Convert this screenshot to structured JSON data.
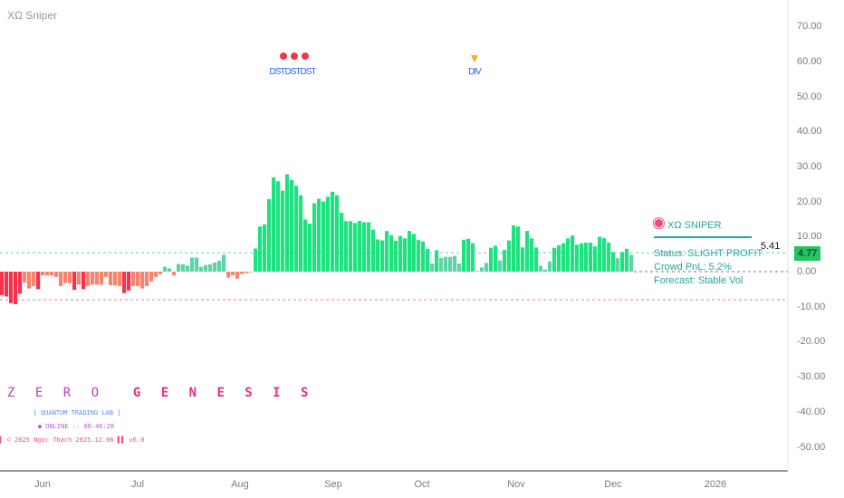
{
  "title": "XΩ Sniper",
  "price_axis": {
    "ticks": [
      "70.00",
      "60.00",
      "50.00",
      "40.00",
      "30.00",
      "20.00",
      "10.00",
      "0.00",
      "-10.00",
      "-20.00",
      "-30.00",
      "-40.00",
      "-50.00"
    ],
    "tick_values": [
      70,
      60,
      50,
      40,
      30,
      20,
      10,
      0,
      -10,
      -20,
      -30,
      -40,
      -50
    ],
    "label_high": "5.41",
    "label_last": "4.77",
    "last_color": "#22c55e"
  },
  "time_axis": {
    "labels": [
      "Jun",
      "Jul",
      "Aug",
      "Sep",
      "Oct",
      "Nov",
      "Dec",
      "2026"
    ]
  },
  "signals": {
    "dst_label": "DSTDSTDST",
    "div_label": "DIV",
    "dot_color": "#f23645",
    "div_color": "#f5a623"
  },
  "levels": {
    "upper": 5.41,
    "zero": 0,
    "lower": -8
  },
  "histogram": {
    "values": [
      -6.7,
      -7.1,
      -9,
      -9.3,
      -6.3,
      -3.1,
      -4.8,
      -4.1,
      -5,
      -1.1,
      -1.1,
      -1.1,
      -1.5,
      -4.1,
      -3.3,
      -3.3,
      -5.2,
      -3.7,
      -5,
      -4.1,
      -3.7,
      -3.7,
      -3.7,
      -1.5,
      -3.9,
      -3.9,
      -4.1,
      -6.1,
      -5.4,
      -4.1,
      -4.1,
      -4.8,
      -4.1,
      -2.8,
      -1.5,
      -0.7,
      1.4,
      0.9,
      -1.1,
      2.2,
      2.1,
      1.7,
      4,
      4,
      1.4,
      1.9,
      2.1,
      2.6,
      3.1,
      4.8,
      -1.7,
      -1.1,
      -2,
      -0.7,
      -0.4,
      -0.2,
      6.6,
      12.9,
      13.5,
      20.7,
      26.9,
      25.8,
      23.1,
      27.8,
      26.2,
      24.5,
      21.8,
      14.9,
      13.7,
      19.5,
      20.8,
      20,
      21.4,
      22.8,
      21.8,
      16.8,
      14.4,
      14.4,
      13.9,
      14.5,
      14.1,
      14.1,
      12,
      9.2,
      8.9,
      11.6,
      10.4,
      8.8,
      10.2,
      9.5,
      11.6,
      10.8,
      9,
      8.6,
      6.5,
      2.3,
      6.1,
      3.9,
      4.2,
      4.2,
      4.5,
      2.3,
      9.1,
      9.4,
      8.1,
      0.2,
      1.2,
      2.5,
      6.8,
      7.4,
      3.2,
      6.2,
      8.9,
      13.2,
      12.9,
      6.9,
      11.6,
      9.5,
      6.9,
      1.7,
      0.6,
      2.9,
      6.8,
      7.5,
      8.1,
      9.5,
      10.3,
      7.7,
      8.1,
      8.3,
      8.3,
      7.2,
      10,
      9.6,
      8.3,
      5.6,
      3.8,
      5.6,
      6.5,
      4.77
    ],
    "colors": {
      "strong_up": "#1de27f",
      "weak_up": "#5ed3a6",
      "strong_down": "#f7314c",
      "weak_down": "#f8836f"
    }
  },
  "panel": {
    "icon": "target-icon",
    "title": "XΩ SNIPER",
    "status": "Status: SLIGHT PROFIT",
    "crowd": "Crowd PnL: 5.2%",
    "forecast": "Forecast: Stable Vol",
    "accent": "#26a69a"
  },
  "branding": {
    "zero": "Z E R O",
    "genesis": "G E N E S I S",
    "lab": "[ QUANTUM TRADING LAB ]",
    "online": "● ONLINE :: 08:46:28",
    "footer": "▌▌▌ © 2025 Ngọc Thạch 2025.12.06 ▌▌ v6.0"
  }
}
